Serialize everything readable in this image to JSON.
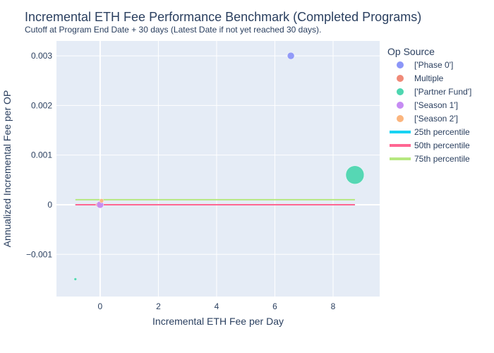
{
  "chart_data": {
    "type": "scatter",
    "title": "Incremental ETH Fee Performance Benchmark (Completed Programs)",
    "subtitle": "Cutoff at Program End Date + 30 days (Latest Date if not yet reached 30 days).",
    "xlabel": "Incremental ETH Fee per Day",
    "ylabel": "Annualized Incremental Fee per OP",
    "xlim": [
      -1.5,
      9.6
    ],
    "ylim": [
      -0.00185,
      0.0033
    ],
    "x_ticks": [
      0,
      2,
      4,
      6,
      8
    ],
    "x_tick_labels": [
      "0",
      "2",
      "4",
      "6",
      "8"
    ],
    "y_ticks": [
      -0.001,
      0,
      0.001,
      0.002,
      0.003
    ],
    "y_tick_labels": [
      "−0.001",
      "0",
      "0.001",
      "0.002",
      "0.003"
    ],
    "grid": true,
    "legend_title": "Op Source",
    "legend_position": "right",
    "series": [
      {
        "name": "['Phase 0']",
        "kind": "marker",
        "color": "#8c96f8",
        "points": [
          {
            "x": 6.55,
            "y": 0.003,
            "size": 5
          },
          {
            "x": 0.0,
            "y": 0.0,
            "size": 4
          }
        ]
      },
      {
        "name": "Multiple",
        "kind": "marker",
        "color": "#f08a78",
        "points": [
          {
            "x": -0.05,
            "y": 0.0,
            "size": 4
          }
        ]
      },
      {
        "name": "['Partner Fund']",
        "kind": "marker",
        "color": "#4ed6b0",
        "points": [
          {
            "x": 8.75,
            "y": 0.0006,
            "size": 13
          },
          {
            "x": -0.85,
            "y": -0.0015,
            "size": 2
          }
        ]
      },
      {
        "name": "['Season 1']",
        "kind": "marker",
        "color": "#c68cf3",
        "points": [
          {
            "x": 0.0,
            "y": 0.0,
            "size": 5
          }
        ]
      },
      {
        "name": "['Season 2']",
        "kind": "marker",
        "color": "#fbb57e",
        "points": [
          {
            "x": 0.05,
            "y": 8e-05,
            "size": 3
          }
        ]
      },
      {
        "name": "25th percentile",
        "kind": "line",
        "color": "#19d3f3",
        "x": [
          -0.85,
          8.75
        ],
        "y": [
          0.0,
          0.0
        ]
      },
      {
        "name": "50th percentile",
        "kind": "line",
        "color": "#ff6692",
        "x": [
          -0.85,
          8.75
        ],
        "y": [
          0.0,
          0.0
        ]
      },
      {
        "name": "75th percentile",
        "kind": "line",
        "color": "#b6e880",
        "x": [
          -0.85,
          8.75
        ],
        "y": [
          0.0001,
          0.0001
        ]
      }
    ]
  }
}
